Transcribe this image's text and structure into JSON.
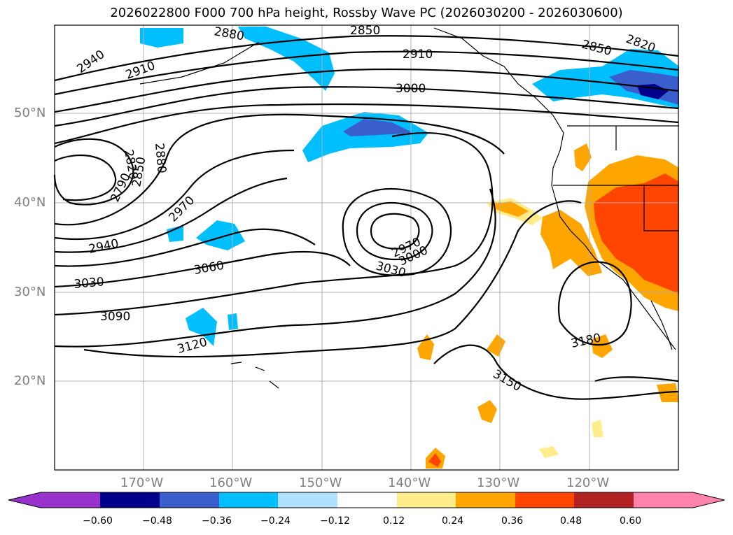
{
  "title": "2026022800 F000 700 hPa height, Rossby Wave PC (2026030200 - 2026030600)",
  "map": {
    "lat_labels": [
      "50°N",
      "40°N",
      "30°N",
      "20°N"
    ],
    "lon_labels": [
      "170°W",
      "160°W",
      "150°W",
      "140°W",
      "130°W",
      "120°W"
    ],
    "contour_labels": [
      "2850",
      "2910",
      "2850",
      "2820",
      "2940",
      "2910",
      "3000",
      "2820",
      "2880",
      "2850",
      "2790",
      "2970",
      "2940",
      "3060",
      "3030",
      "3090",
      "3120",
      "2970",
      "3000",
      "3030",
      "3180",
      "3150",
      "2880"
    ]
  },
  "colorbar": {
    "tick_labels": [
      "−0.60",
      "−0.48",
      "−0.36",
      "−0.24",
      "−0.12",
      "0.12",
      "0.24",
      "0.36",
      "0.48",
      "0.60"
    ],
    "colors": [
      "#9932cc",
      "#00008b",
      "#3a5fcd",
      "#00bfff",
      "#b0e2ff",
      "#ffffff",
      "#ffec8b",
      "#ffa500",
      "#ff4500",
      "#b22222",
      "#ff83aa"
    ]
  }
}
